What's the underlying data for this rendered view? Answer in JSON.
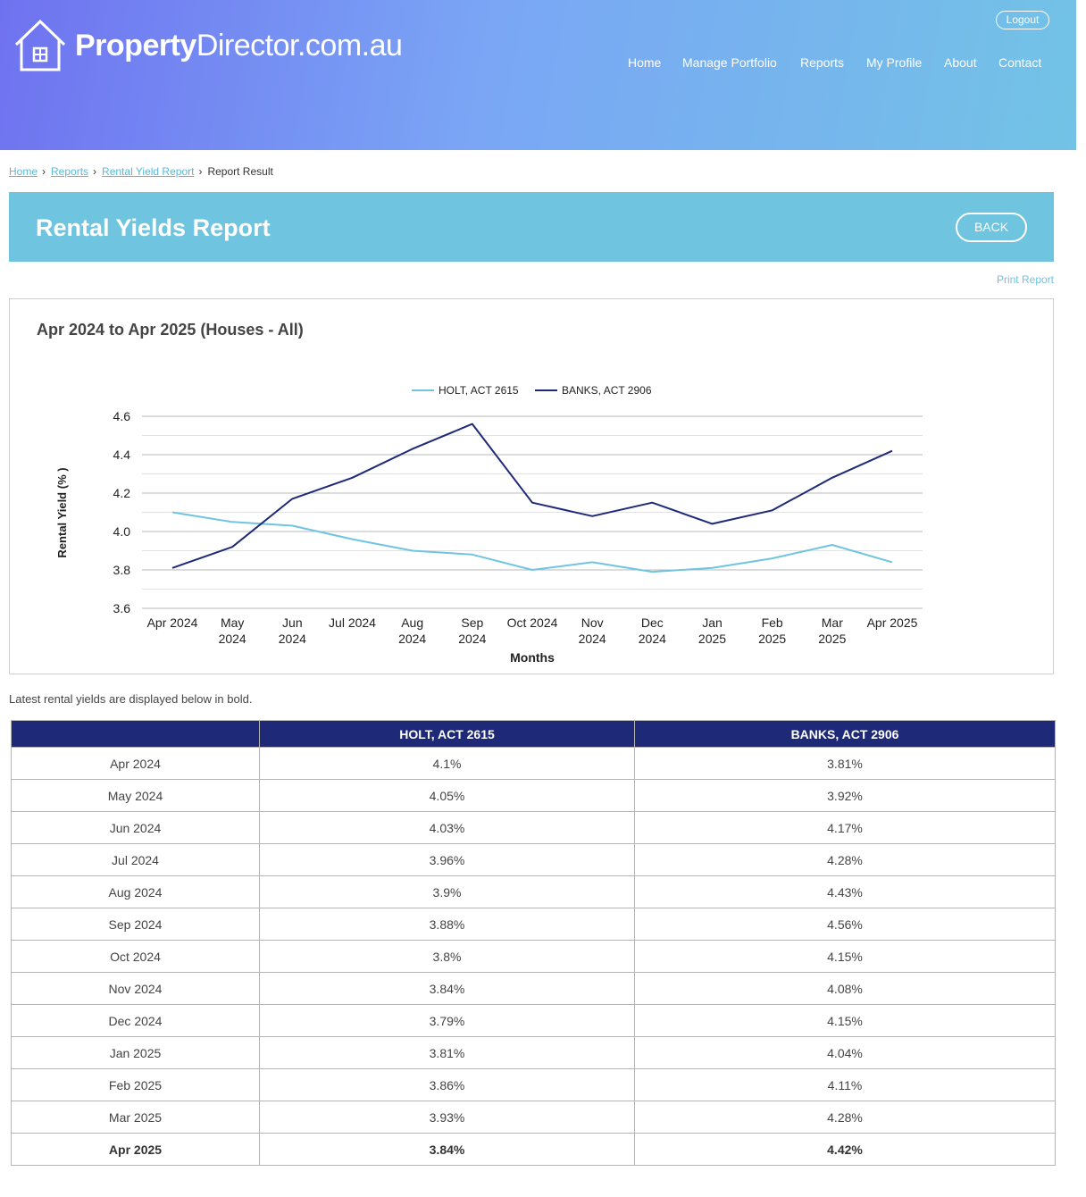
{
  "brand": {
    "name_bold": "Property",
    "name_rest": "Director.com.au"
  },
  "header": {
    "logout": "Logout",
    "nav": [
      "Home",
      "Manage Portfolio",
      "Reports",
      "My Profile",
      "About",
      "Contact"
    ]
  },
  "breadcrumb": {
    "home": "Home",
    "reports": "Reports",
    "rental_yield_report": "Rental Yield Report",
    "current": "Report Result"
  },
  "page": {
    "title": "Rental Yields Report",
    "back": "BACK",
    "print": "Print Report"
  },
  "chart_heading": "Apr 2024 to Apr 2025 (Houses - All)",
  "note": "Latest rental yields are displayed below in bold.",
  "chart_data": {
    "type": "line",
    "x": [
      "Apr 2024",
      "May 2024",
      "Jun 2024",
      "Jul 2024",
      "Aug 2024",
      "Sep 2024",
      "Oct 2024",
      "Nov 2024",
      "Dec 2024",
      "Jan 2025",
      "Feb 2025",
      "Mar 2025",
      "Apr 2025"
    ],
    "series": [
      {
        "name": "HOLT, ACT 2615",
        "color": "#6fc5e0",
        "values": [
          4.1,
          4.05,
          4.03,
          3.96,
          3.9,
          3.88,
          3.8,
          3.84,
          3.79,
          3.81,
          3.86,
          3.93,
          3.84
        ]
      },
      {
        "name": "BANKS, ACT 2906",
        "color": "#1e2a78",
        "values": [
          3.81,
          3.92,
          4.17,
          4.28,
          4.43,
          4.56,
          4.15,
          4.08,
          4.15,
          4.04,
          4.11,
          4.28,
          4.42
        ]
      }
    ],
    "xlabel": "Months",
    "ylabel": "Rental Yield (% )",
    "ylim": [
      3.6,
      4.6
    ],
    "yticks": [
      "3.6",
      "3.8",
      "4.0",
      "4.2",
      "4.4",
      "4.6"
    ],
    "legend": "top-center",
    "grid": true
  },
  "table": {
    "headers": [
      "",
      "HOLT, ACT 2615",
      "BANKS, ACT 2906"
    ],
    "rows": [
      [
        "Apr 2024",
        "4.1%",
        "3.81%"
      ],
      [
        "May 2024",
        "4.05%",
        "3.92%"
      ],
      [
        "Jun 2024",
        "4.03%",
        "4.17%"
      ],
      [
        "Jul 2024",
        "3.96%",
        "4.28%"
      ],
      [
        "Aug 2024",
        "3.9%",
        "4.43%"
      ],
      [
        "Sep 2024",
        "3.88%",
        "4.56%"
      ],
      [
        "Oct 2024",
        "3.8%",
        "4.15%"
      ],
      [
        "Nov 2024",
        "3.84%",
        "4.08%"
      ],
      [
        "Dec 2024",
        "3.79%",
        "4.15%"
      ],
      [
        "Jan 2025",
        "3.81%",
        "4.04%"
      ],
      [
        "Feb 2025",
        "3.86%",
        "4.11%"
      ],
      [
        "Mar 2025",
        "3.93%",
        "4.28%"
      ],
      [
        "Apr 2025",
        "3.84%",
        "4.42%"
      ]
    ]
  }
}
